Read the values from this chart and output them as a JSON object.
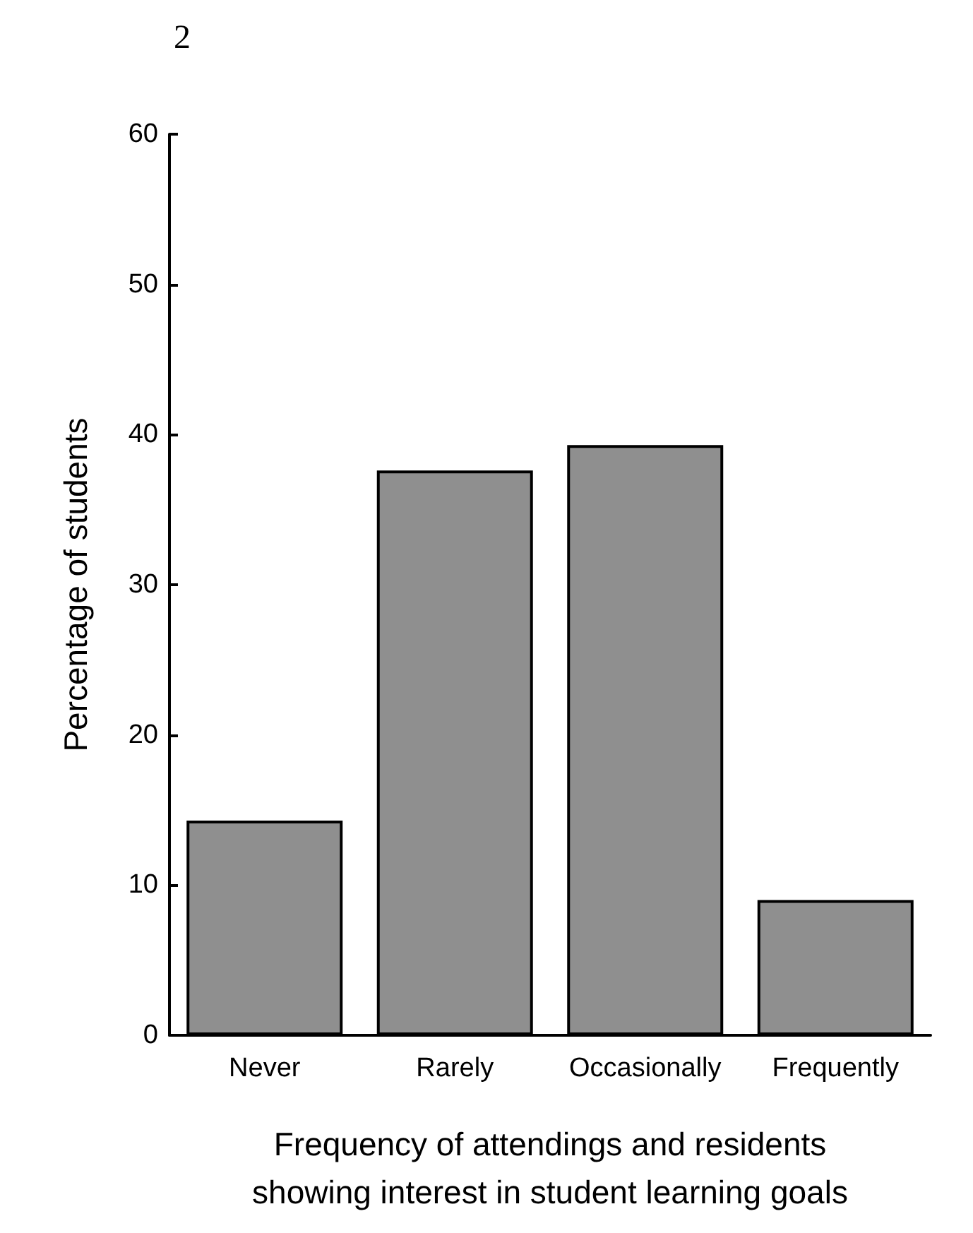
{
  "chart_data": {
    "type": "bar",
    "title": "2",
    "xlabel": "Frequency of attendings and residents\nshowing interest in student learning goals",
    "ylabel": "Percentage of students",
    "categories": [
      "Never",
      "Rarely",
      "Occasionally",
      "Frequently"
    ],
    "values": [
      14.3,
      37.6,
      39.3,
      9.0
    ],
    "color": "#8f8f8f",
    "ylim": [
      0,
      60
    ],
    "yticks": [
      0,
      10,
      20,
      30,
      40,
      50,
      60
    ],
    "grid": false
  }
}
